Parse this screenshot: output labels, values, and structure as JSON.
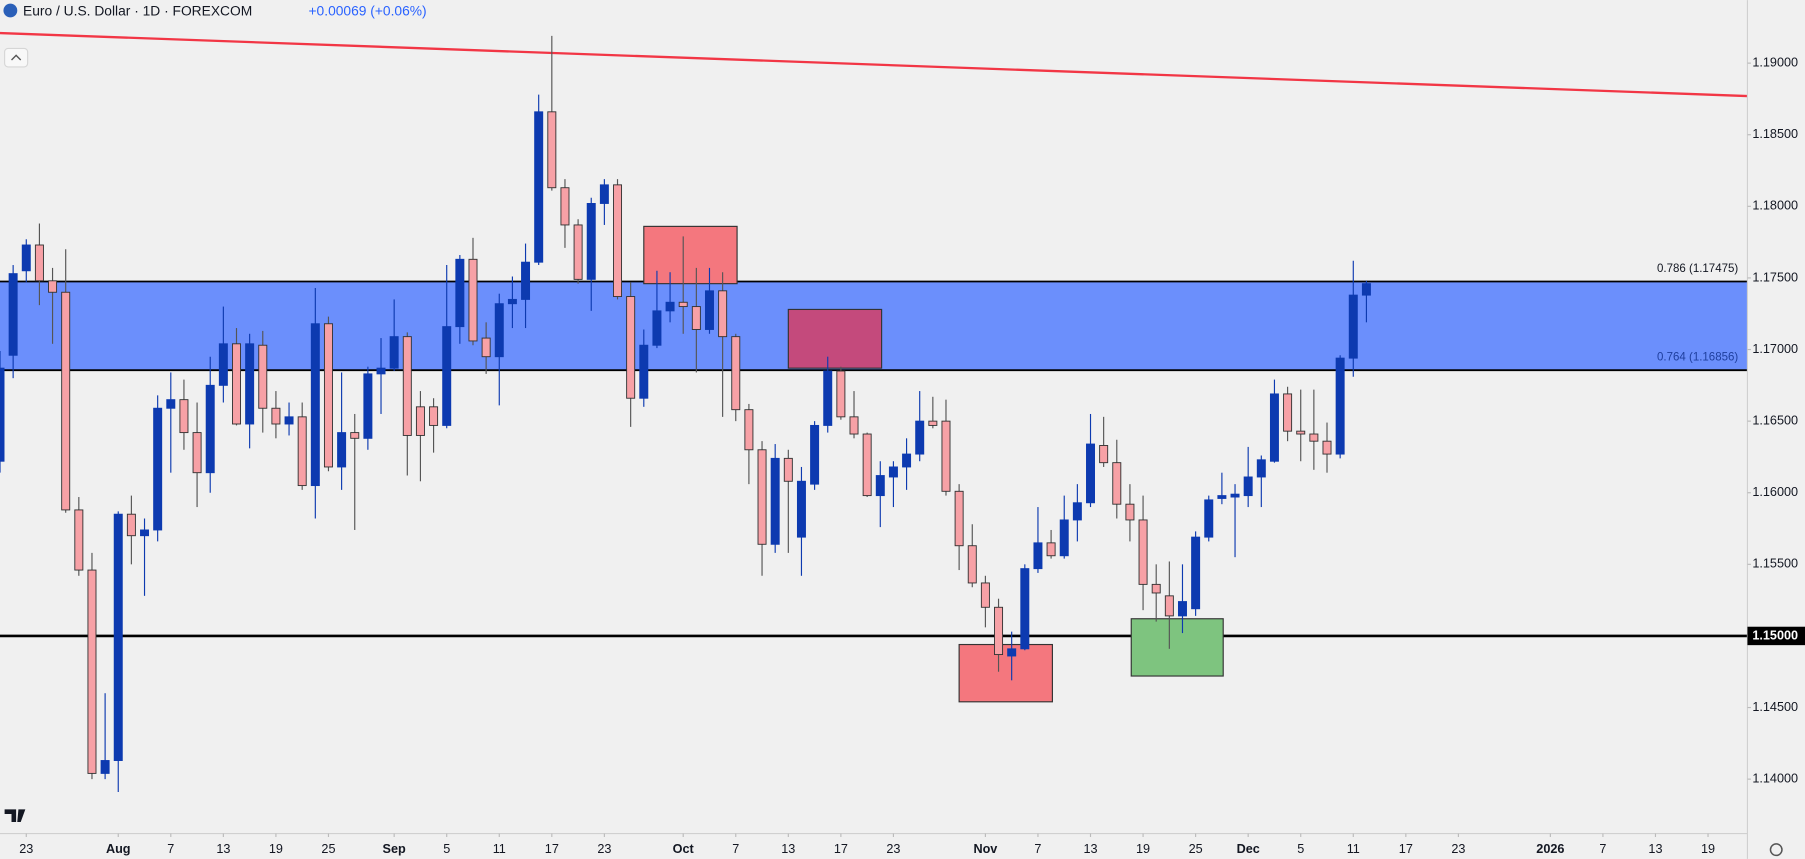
{
  "chart_data": {
    "type": "candlestick",
    "title": "Euro / U.S. Dollar · 1D · FOREXCOM",
    "subtitle": "+0.00069 (+0.06%)",
    "up_color": "#0d3ab0",
    "down_color": "#f7a1a6",
    "open": [
      1.1622,
      1.1696,
      1.1755,
      1.1773,
      1.1748,
      1.174,
      1.1588,
      1.1546,
      1.1404,
      1.1413,
      1.1585,
      1.157,
      1.1574,
      1.1659,
      1.1665,
      1.1642,
      1.1614,
      1.1675,
      1.1704,
      1.1648,
      1.1703,
      1.1659,
      1.1648,
      1.1653,
      1.1605,
      1.1718,
      1.1618,
      1.1642,
      1.1638,
      1.1683,
      1.1687,
      1.1709,
      1.166,
      1.166,
      1.1647,
      1.1716,
      1.1763,
      1.1708,
      1.1695,
      1.1732,
      1.1735,
      1.1761,
      1.1866,
      1.1813,
      1.1787,
      1.1749,
      1.1802,
      1.1815,
      1.1737,
      1.1666,
      1.1703,
      1.1727,
      1.1733,
      1.173,
      1.1714,
      1.1741,
      1.1709,
      1.1658,
      1.163,
      1.1564,
      1.1624,
      1.1569,
      1.1606,
      1.1647,
      1.1685,
      1.1653,
      1.1641,
      1.1598,
      1.1611,
      1.1618,
      1.1627,
      1.165,
      1.165,
      1.1601,
      1.1563,
      1.1537,
      1.152,
      1.1486,
      1.1491,
      1.1547,
      1.1565,
      1.1556,
      1.1581,
      1.1593,
      1.1633,
      1.1621,
      1.1592,
      1.1581,
      1.1536,
      1.1528,
      1.1514,
      1.1519,
      1.1569,
      1.1596,
      1.1597,
      1.1598,
      1.1611,
      1.1622,
      1.1669,
      1.1643,
      1.1641,
      1.1636,
      1.1627,
      1.1694,
      1.1738
    ],
    "high": [
      1.1699,
      1.1759,
      1.1777,
      1.1788,
      1.1757,
      1.177,
      1.1597,
      1.1558,
      1.146,
      1.1587,
      1.1598,
      1.1582,
      1.1668,
      1.1684,
      1.1679,
      1.1663,
      1.1695,
      1.173,
      1.1715,
      1.1711,
      1.1713,
      1.1671,
      1.1663,
      1.1663,
      1.1743,
      1.1723,
      1.1684,
      1.1655,
      1.1688,
      1.1708,
      1.1735,
      1.1712,
      1.1671,
      1.1666,
      1.1759,
      1.1766,
      1.1778,
      1.1719,
      1.1739,
      1.1751,
      1.1774,
      1.1878,
      1.1919,
      1.1819,
      1.1791,
      1.1806,
      1.1819,
      1.1819,
      1.1747,
      1.1714,
      1.1755,
      1.1754,
      1.1779,
      1.1757,
      1.1757,
      1.1754,
      1.1711,
      1.1662,
      1.1636,
      1.1634,
      1.163,
      1.1618,
      1.165,
      1.1695,
      1.1688,
      1.1671,
      1.1642,
      1.1622,
      1.1622,
      1.1638,
      1.1671,
      1.1667,
      1.1665,
      1.1606,
      1.1578,
      1.1542,
      1.1526,
      1.1503,
      1.155,
      1.159,
      1.1574,
      1.1598,
      1.1606,
      1.1655,
      1.1653,
      1.1637,
      1.1606,
      1.1598,
      1.155,
      1.1552,
      1.155,
      1.1573,
      1.1598,
      1.1614,
      1.1606,
      1.1632,
      1.1626,
      1.1679,
      1.1674,
      1.1672,
      1.1672,
      1.1649,
      1.1696,
      1.1762,
      1.1748
    ],
    "low": [
      1.1614,
      1.168,
      1.1747,
      1.1731,
      1.1704,
      1.1586,
      1.1542,
      1.14,
      1.14,
      1.1391,
      1.155,
      1.1528,
      1.1566,
      1.1614,
      1.163,
      1.159,
      1.16,
      1.1663,
      1.1647,
      1.1631,
      1.1642,
      1.1638,
      1.164,
      1.1602,
      1.1582,
      1.1615,
      1.1602,
      1.1574,
      1.163,
      1.1655,
      1.1685,
      1.1612,
      1.1608,
      1.1628,
      1.1645,
      1.1704,
      1.1703,
      1.1683,
      1.1661,
      1.1715,
      1.1715,
      1.1759,
      1.1811,
      1.1771,
      1.1746,
      1.1727,
      1.1787,
      1.1735,
      1.1646,
      1.166,
      1.1701,
      1.1719,
      1.1711,
      1.1684,
      1.1711,
      1.1653,
      1.165,
      1.1606,
      1.1542,
      1.1558,
      1.1558,
      1.1542,
      1.1602,
      1.1642,
      1.1651,
      1.1638,
      1.1597,
      1.1576,
      1.159,
      1.1602,
      1.1622,
      1.1645,
      1.1598,
      1.1546,
      1.1534,
      1.1506,
      1.1475,
      1.1469,
      1.149,
      1.1544,
      1.1554,
      1.1554,
      1.1566,
      1.159,
      1.1618,
      1.1582,
      1.1566,
      1.1518,
      1.151,
      1.1491,
      1.1502,
      1.1514,
      1.1566,
      1.1592,
      1.1555,
      1.159,
      1.159,
      1.1621,
      1.1636,
      1.1622,
      1.1616,
      1.1614,
      1.1624,
      1.1681,
      1.1719
    ],
    "close": [
      1.1687,
      1.1753,
      1.1773,
      1.1748,
      1.174,
      1.1588,
      1.1546,
      1.1404,
      1.1413,
      1.1585,
      1.157,
      1.1574,
      1.1659,
      1.1665,
      1.1642,
      1.1614,
      1.1675,
      1.1704,
      1.1648,
      1.1704,
      1.1659,
      1.1648,
      1.1653,
      1.1605,
      1.1718,
      1.1618,
      1.1642,
      1.1638,
      1.1683,
      1.1687,
      1.1709,
      1.164,
      1.164,
      1.1647,
      1.1716,
      1.1763,
      1.1706,
      1.1695,
      1.1732,
      1.1735,
      1.1761,
      1.1866,
      1.1813,
      1.1787,
      1.1749,
      1.1802,
      1.1815,
      1.1737,
      1.1666,
      1.1703,
      1.1727,
      1.1733,
      1.173,
      1.1714,
      1.1741,
      1.1709,
      1.1658,
      1.163,
      1.1564,
      1.1624,
      1.1608,
      1.1608,
      1.1647,
      1.1685,
      1.1653,
      1.1641,
      1.1598,
      1.1612,
      1.1618,
      1.1627,
      1.165,
      1.1647,
      1.1601,
      1.1563,
      1.1537,
      1.152,
      1.1487,
      1.1491,
      1.1547,
      1.1565,
      1.1556,
      1.1581,
      1.1593,
      1.1634,
      1.1621,
      1.1592,
      1.1581,
      1.1536,
      1.153,
      1.1514,
      1.1524,
      1.1569,
      1.1595,
      1.1598,
      1.1599,
      1.1611,
      1.1623,
      1.1669,
      1.1643,
      1.1641,
      1.1636,
      1.1627,
      1.1694,
      1.1738,
      1.1746
    ],
    "xlim": [
      0,
      133
    ],
    "xticks": [
      {
        "value": 2,
        "label": "23"
      },
      {
        "value": 9,
        "label": "Aug"
      },
      {
        "value": 13,
        "label": "7"
      },
      {
        "value": 17,
        "label": "13"
      },
      {
        "value": 21,
        "label": "19"
      },
      {
        "value": 25,
        "label": "25"
      },
      {
        "value": 30,
        "label": "Sep"
      },
      {
        "value": 34,
        "label": "5"
      },
      {
        "value": 38,
        "label": "11"
      },
      {
        "value": 42,
        "label": "17"
      },
      {
        "value": 46,
        "label": "23"
      },
      {
        "value": 52,
        "label": "Oct"
      },
      {
        "value": 56,
        "label": "7"
      },
      {
        "value": 60,
        "label": "13"
      },
      {
        "value": 64,
        "label": "17"
      },
      {
        "value": 68,
        "label": "23"
      },
      {
        "value": 75,
        "label": "Nov"
      },
      {
        "value": 79,
        "label": "7"
      },
      {
        "value": 83,
        "label": "13"
      },
      {
        "value": 87,
        "label": "19"
      },
      {
        "value": 91,
        "label": "25"
      },
      {
        "value": 95,
        "label": "Dec"
      },
      {
        "value": 99,
        "label": "5"
      },
      {
        "value": 103,
        "label": "11"
      },
      {
        "value": 107,
        "label": "17"
      },
      {
        "value": 111,
        "label": "23"
      },
      {
        "value": 118,
        "label": "2026"
      },
      {
        "value": 122,
        "label": "7"
      },
      {
        "value": 126,
        "label": "13"
      },
      {
        "value": 130,
        "label": "19"
      }
    ],
    "ylim": [
      1.1362,
      1.1944
    ],
    "yticks": [
      {
        "value": 1.14,
        "label": "1.14000"
      },
      {
        "value": 1.145,
        "label": "1.14500"
      },
      {
        "value": 1.155,
        "label": "1.15500"
      },
      {
        "value": 1.16,
        "label": "1.16000"
      },
      {
        "value": 1.165,
        "label": "1.16500"
      },
      {
        "value": 1.17,
        "label": "1.17000"
      },
      {
        "value": 1.175,
        "label": "1.17500"
      },
      {
        "value": 1.18,
        "label": "1.18000"
      },
      {
        "value": 1.185,
        "label": "1.18500"
      },
      {
        "value": 1.19,
        "label": "1.19000"
      }
    ],
    "grid": false,
    "levels": [
      {
        "value": 1.15,
        "label": "1.15000"
      }
    ],
    "fib_zone": {
      "color": "#6b8ffc",
      "lines": [
        {
          "value": 1.17475,
          "label": "0.786 (1.17475)"
        },
        {
          "value": 1.16856,
          "label": "0.764 (1.16856)"
        }
      ]
    },
    "trendline": {
      "x": [
        0,
        133
      ],
      "y": [
        1.1921,
        1.1877
      ],
      "color": "#f23645"
    },
    "boxes": [
      {
        "x": [
          49,
          56.1
        ],
        "y": [
          1.1746,
          1.1786
        ],
        "color": "#f4777e"
      },
      {
        "x": [
          60,
          67.1
        ],
        "y": [
          1.1687,
          1.1728
        ],
        "color": "#c44a7c"
      },
      {
        "x": [
          73,
          80.1
        ],
        "y": [
          1.1454,
          1.1494
        ],
        "color": "#f4777e"
      },
      {
        "x": [
          86.1,
          93.1
        ],
        "y": [
          1.1472,
          1.1512
        ],
        "color": "#7ec47f"
      }
    ]
  }
}
